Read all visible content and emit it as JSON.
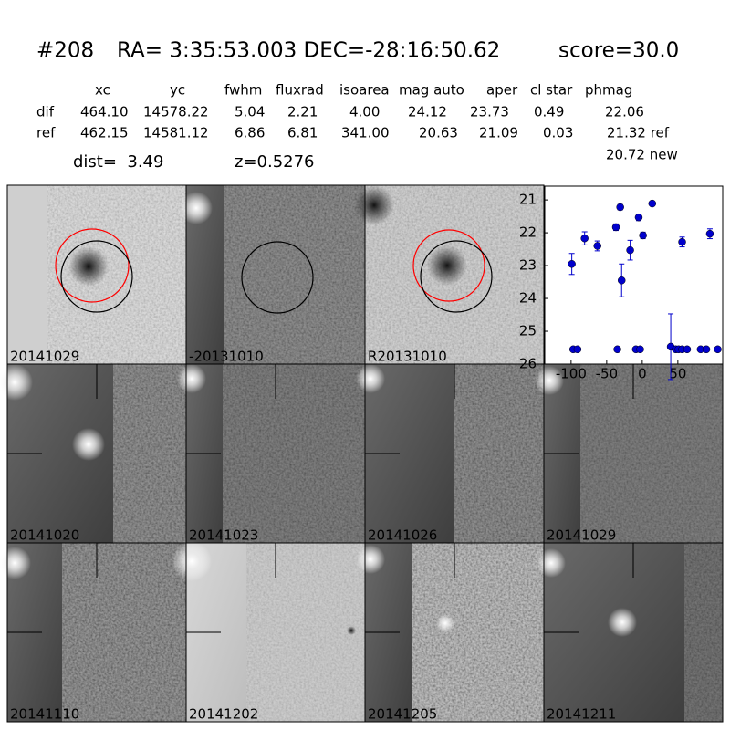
{
  "header": {
    "id": "#208",
    "coords": "RA= 3:35:53.003 DEC=-28:16:50.62",
    "score": "score=30.0"
  },
  "table": {
    "columns": [
      "xc",
      "yc",
      "fwhm",
      "fluxrad",
      "isoarea",
      "mag auto",
      "aper",
      "cl star",
      "phmag"
    ],
    "rows": [
      [
        "dif",
        "464.10",
        "14578.22",
        "5.04",
        "2.21",
        "4.00",
        "24.12",
        "23.73",
        "0.49",
        "22.06"
      ],
      [
        "ref",
        "462.15",
        "14581.12",
        "6.86",
        "6.81",
        "341.00",
        "20.63",
        "21.09",
        "0.03",
        "21.32 ref"
      ]
    ],
    "extra": "20.72 new"
  },
  "dist": "dist=  3.49",
  "z": "z=0.5276",
  "stamps": [
    {
      "label": "20141029"
    },
    {
      "label": "-20131010"
    },
    {
      "label": "R20131010"
    },
    {
      "label": "20141020"
    },
    {
      "label": "20141023"
    },
    {
      "label": "20141026"
    },
    {
      "label": "20141029",
      "color": "#ff0000"
    },
    {
      "label": "20141110"
    },
    {
      "label": "20141202"
    },
    {
      "label": "20141205"
    },
    {
      "label": "20141211"
    }
  ],
  "chart_data": {
    "type": "scatter",
    "color": "#0000cc",
    "x": [
      -99,
      -81,
      -63,
      -37,
      -31,
      -29,
      -17,
      -5,
      1,
      14,
      56,
      95,
      -97,
      -91,
      -35,
      -9,
      -3,
      40,
      47,
      51,
      56,
      63,
      82,
      90,
      106
    ],
    "values": [
      22.95,
      22.17,
      22.4,
      21.83,
      21.22,
      23.45,
      22.53,
      21.53,
      22.08,
      21.11,
      22.28,
      22.03,
      25.55,
      25.55,
      25.55,
      25.55,
      25.55,
      25.47,
      25.55,
      25.55,
      25.55,
      25.55,
      25.55,
      25.55,
      25.55
    ],
    "errors": [
      0.32,
      0.2,
      0.15,
      0.1,
      0.08,
      0.5,
      0.3,
      0.1,
      0.1,
      0.05,
      0.15,
      0.15,
      0,
      0,
      0,
      0,
      0,
      1.0,
      0,
      0,
      0,
      0,
      0,
      0,
      0
    ],
    "xlim": [
      -137,
      113
    ],
    "ylim": [
      26,
      20.58
    ],
    "xticks": [
      -100,
      -50,
      0,
      50
    ],
    "yticks": [
      21,
      22,
      23,
      24,
      25,
      26
    ]
  }
}
